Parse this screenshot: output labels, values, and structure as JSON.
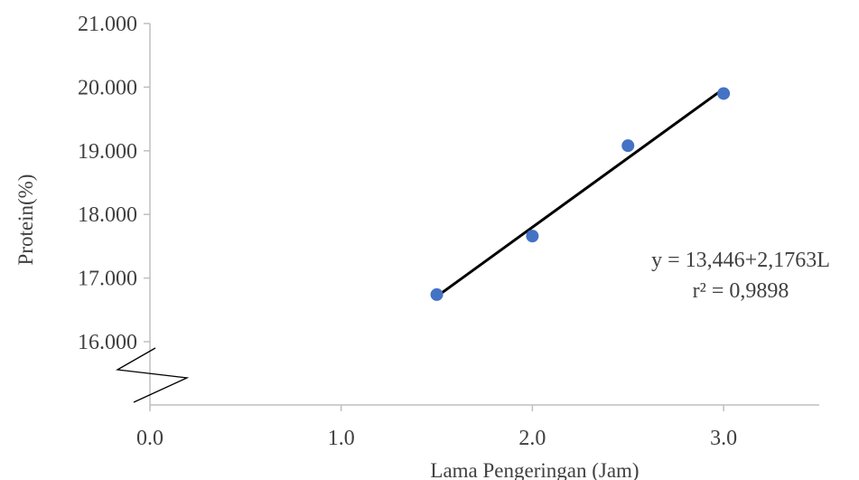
{
  "chart_data": {
    "type": "scatter",
    "xlabel": "Lama Pengeringan (Jam)",
    "ylabel": "Protein(%)",
    "x_ticks": [
      "0.0",
      "1.0",
      "2.0",
      "3.0"
    ],
    "y_ticks": [
      "16.000",
      "17.000",
      "18.000",
      "19.000",
      "20.000",
      "21.000"
    ],
    "xlim": [
      0,
      3.5
    ],
    "ylim": [
      16.0,
      21.0
    ],
    "axis_break": "y-axis below 16.000",
    "series": [
      {
        "x": [
          1.5,
          2.0,
          2.5,
          3.0
        ],
        "y": [
          16.74,
          17.66,
          19.08,
          19.9
        ],
        "color": "#4472c4"
      }
    ],
    "trendline": {
      "type": "linear",
      "intercept": 13.446,
      "slope": 2.1763,
      "color": "#000000"
    },
    "equation_lines": [
      "y = 13,446+2,1763L",
      "r² = 0,9898"
    ],
    "grid": false,
    "legend": "none"
  }
}
